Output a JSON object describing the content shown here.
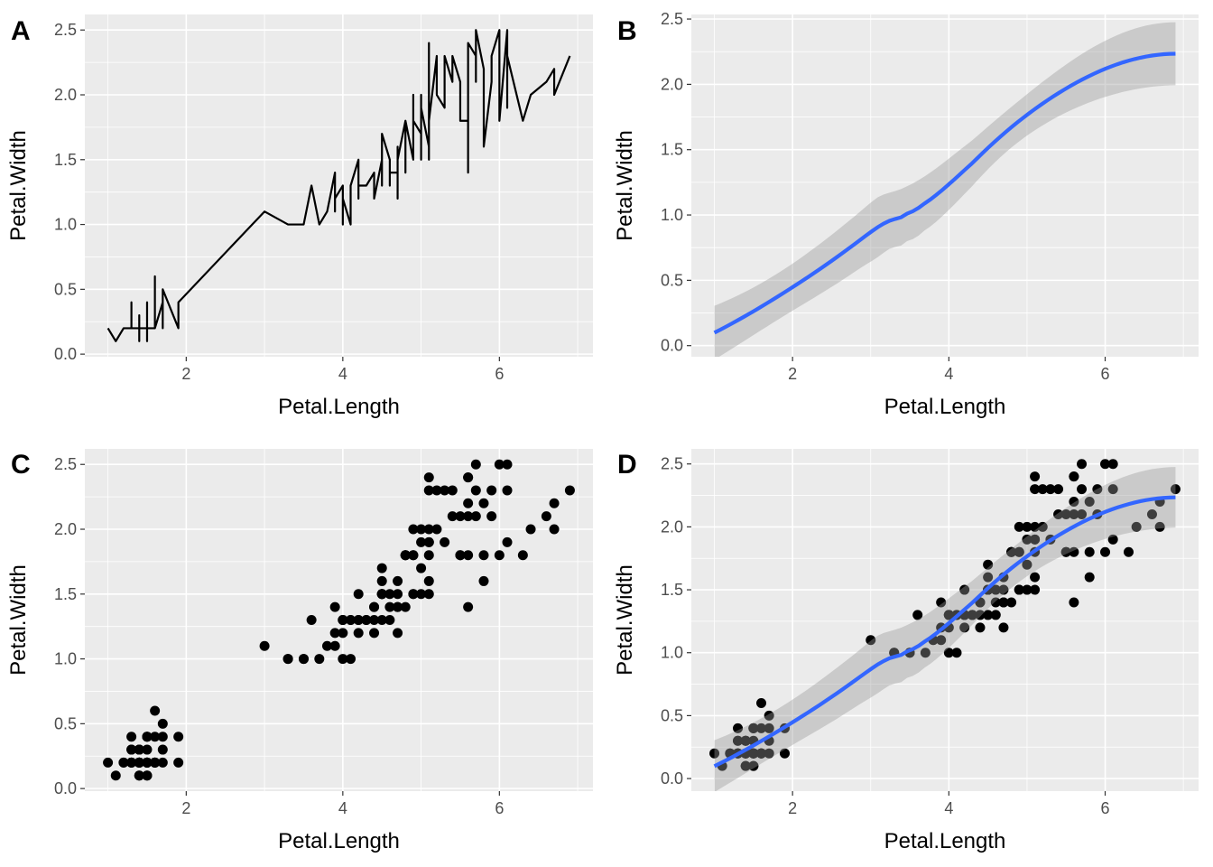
{
  "figure": {
    "panel_bg": "#ebebeb",
    "grid_color": "#ffffff",
    "tick_color": "#333333",
    "point_color": "#000000",
    "smooth_color": "#3366ff",
    "ribbon_color": "#999999"
  },
  "chart_data": [
    {
      "tag": "A",
      "type": "line",
      "xlabel": "Petal.Length",
      "ylabel": "Petal.Width",
      "xlim": [
        0.705,
        7.195
      ],
      "ylim": [
        -0.02,
        2.62
      ],
      "xticks": [
        2,
        4,
        6
      ],
      "xtick_labels": [
        "2",
        "4",
        "6"
      ],
      "yticks": [
        0,
        0.5,
        1,
        1.5,
        2,
        2.5
      ],
      "ytick_labels": [
        "0.0",
        "0.5",
        "1.0",
        "1.5",
        "2.0",
        "2.5"
      ],
      "grid": true,
      "layers": [
        "line"
      ]
    },
    {
      "tag": "B",
      "type": "line",
      "xlabel": "Petal.Length",
      "ylabel": "Petal.Width",
      "xlim": [
        0.705,
        7.195
      ],
      "ylim": [
        -0.085,
        2.535
      ],
      "xticks": [
        2,
        4,
        6
      ],
      "xtick_labels": [
        "2",
        "4",
        "6"
      ],
      "yticks": [
        0,
        0.5,
        1,
        1.5,
        2,
        2.5
      ],
      "ytick_labels": [
        "0.0",
        "0.5",
        "1.0",
        "1.5",
        "2.0",
        "2.5"
      ],
      "grid": true,
      "layers": [
        "smooth"
      ]
    },
    {
      "tag": "C",
      "type": "scatter",
      "xlabel": "Petal.Length",
      "ylabel": "Petal.Width",
      "xlim": [
        0.705,
        7.195
      ],
      "ylim": [
        -0.02,
        2.62
      ],
      "xticks": [
        2,
        4,
        6
      ],
      "xtick_labels": [
        "2",
        "4",
        "6"
      ],
      "yticks": [
        0,
        0.5,
        1,
        1.5,
        2,
        2.5
      ],
      "ytick_labels": [
        "0.0",
        "0.5",
        "1.0",
        "1.5",
        "2.0",
        "2.5"
      ],
      "grid": true,
      "layers": [
        "points"
      ]
    },
    {
      "tag": "D",
      "type": "scatter",
      "xlabel": "Petal.Length",
      "ylabel": "Petal.Width",
      "xlim": [
        0.705,
        7.195
      ],
      "ylim": [
        -0.1,
        2.62
      ],
      "xticks": [
        2,
        4,
        6
      ],
      "xtick_labels": [
        "2",
        "4",
        "6"
      ],
      "yticks": [
        0,
        0.5,
        1,
        1.5,
        2,
        2.5
      ],
      "ytick_labels": [
        "0.0",
        "0.5",
        "1.0",
        "1.5",
        "2.0",
        "2.5"
      ],
      "grid": true,
      "layers": [
        "points",
        "smooth"
      ]
    }
  ],
  "data": {
    "x": [
      1.4,
      1.4,
      1.3,
      1.5,
      1.4,
      1.7,
      1.4,
      1.5,
      1.4,
      1.5,
      1.5,
      1.6,
      1.4,
      1.1,
      1.2,
      1.5,
      1.3,
      1.4,
      1.7,
      1.5,
      1.7,
      1.5,
      1.0,
      1.7,
      1.9,
      1.6,
      1.6,
      1.5,
      1.4,
      1.6,
      1.6,
      1.5,
      1.5,
      1.4,
      1.5,
      1.2,
      1.3,
      1.4,
      1.3,
      1.5,
      1.3,
      1.3,
      1.3,
      1.6,
      1.9,
      1.4,
      1.6,
      1.4,
      1.5,
      1.4,
      4.7,
      4.5,
      4.9,
      4.0,
      4.6,
      4.5,
      4.7,
      3.3,
      4.6,
      3.9,
      3.5,
      4.2,
      4.0,
      4.7,
      3.6,
      4.4,
      4.5,
      4.1,
      4.5,
      3.9,
      4.8,
      4.0,
      4.9,
      4.7,
      4.3,
      4.4,
      4.8,
      5.0,
      4.5,
      3.5,
      3.8,
      3.7,
      3.9,
      5.1,
      4.5,
      4.5,
      4.7,
      4.4,
      4.1,
      4.0,
      4.4,
      4.6,
      4.0,
      3.3,
      4.2,
      4.2,
      4.2,
      4.3,
      3.0,
      4.1,
      6.0,
      5.1,
      5.9,
      5.6,
      5.8,
      6.6,
      4.5,
      6.3,
      5.8,
      6.1,
      5.1,
      5.3,
      5.5,
      5.0,
      5.1,
      5.3,
      5.5,
      6.7,
      6.9,
      5.0,
      5.7,
      4.9,
      6.7,
      4.9,
      5.7,
      6.0,
      4.8,
      4.9,
      5.6,
      5.8,
      6.1,
      6.4,
      5.6,
      5.1,
      5.6,
      6.1,
      5.6,
      5.5,
      4.8,
      5.4,
      5.6,
      5.1,
      5.1,
      5.9,
      5.7,
      5.2,
      5.0,
      5.2,
      5.4,
      5.1
    ],
    "y": [
      0.2,
      0.2,
      0.2,
      0.2,
      0.2,
      0.4,
      0.3,
      0.2,
      0.2,
      0.1,
      0.2,
      0.2,
      0.1,
      0.1,
      0.2,
      0.4,
      0.4,
      0.3,
      0.3,
      0.3,
      0.2,
      0.4,
      0.2,
      0.5,
      0.2,
      0.2,
      0.4,
      0.2,
      0.2,
      0.2,
      0.2,
      0.4,
      0.1,
      0.2,
      0.2,
      0.2,
      0.2,
      0.1,
      0.2,
      0.2,
      0.3,
      0.3,
      0.2,
      0.6,
      0.4,
      0.3,
      0.2,
      0.2,
      0.2,
      0.2,
      1.4,
      1.5,
      1.5,
      1.3,
      1.5,
      1.3,
      1.6,
      1.0,
      1.3,
      1.4,
      1.0,
      1.5,
      1.0,
      1.4,
      1.3,
      1.4,
      1.5,
      1.0,
      1.5,
      1.1,
      1.8,
      1.3,
      1.5,
      1.2,
      1.3,
      1.4,
      1.4,
      1.7,
      1.5,
      1.0,
      1.1,
      1.0,
      1.2,
      1.6,
      1.5,
      1.6,
      1.5,
      1.3,
      1.3,
      1.3,
      1.2,
      1.4,
      1.2,
      1.0,
      1.3,
      1.2,
      1.3,
      1.3,
      1.1,
      1.3,
      2.5,
      1.9,
      2.1,
      1.8,
      2.2,
      2.1,
      1.7,
      1.8,
      1.8,
      2.5,
      2.0,
      1.9,
      2.1,
      2.0,
      2.4,
      2.3,
      1.8,
      2.2,
      2.3,
      1.5,
      2.3,
      2.0,
      2.0,
      1.8,
      2.1,
      1.8,
      1.8,
      1.8,
      2.1,
      1.6,
      1.9,
      2.0,
      2.2,
      1.5,
      1.4,
      2.3,
      2.4,
      1.8,
      1.8,
      2.1,
      2.4,
      2.3,
      1.9,
      2.3,
      2.5,
      2.3,
      1.9,
      2.0,
      2.3,
      1.8
    ]
  }
}
